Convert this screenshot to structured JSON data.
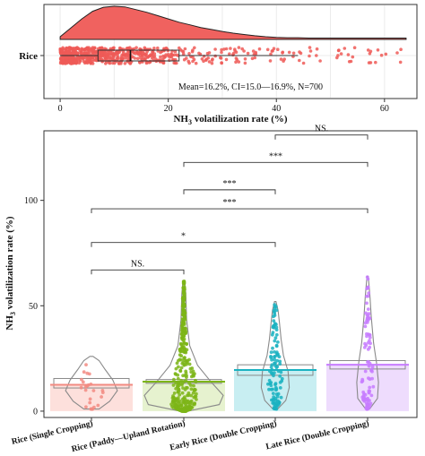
{
  "chart_data": [
    {
      "type": "raincloud",
      "category": "Rice",
      "xlabel": "NH3 volatilization rate (%)",
      "xlabel_parts": {
        "pre": "NH",
        "sub": "3",
        "post": " volatilization rate (%)"
      },
      "xlim": [
        -3,
        66
      ],
      "x_ticks": [
        0,
        20,
        40,
        60
      ],
      "x_tick_labels": [
        "0",
        "20",
        "40",
        "60"
      ],
      "annotation": "Mean=16.2%, CI=15.0—16.9%, N=700",
      "summary": {
        "mean": 16.2,
        "ci_low": 15.0,
        "ci_high": 16.9,
        "n": 700,
        "q1": 7,
        "median": 13,
        "q3": 22,
        "whisker_low": 0,
        "whisker_high": 44
      },
      "density": [
        [
          0,
          0.08
        ],
        [
          2,
          0.35
        ],
        [
          4,
          0.62
        ],
        [
          6,
          0.85
        ],
        [
          8,
          0.97
        ],
        [
          10,
          1.0
        ],
        [
          12,
          0.98
        ],
        [
          14,
          0.9
        ],
        [
          16,
          0.82
        ],
        [
          18,
          0.72
        ],
        [
          20,
          0.62
        ],
        [
          22,
          0.52
        ],
        [
          24,
          0.44
        ],
        [
          26,
          0.36
        ],
        [
          28,
          0.3
        ],
        [
          30,
          0.24
        ],
        [
          32,
          0.19
        ],
        [
          34,
          0.15
        ],
        [
          36,
          0.11
        ],
        [
          38,
          0.08
        ],
        [
          40,
          0.06
        ],
        [
          42,
          0.05
        ],
        [
          44,
          0.05
        ],
        [
          46,
          0.04
        ],
        [
          48,
          0.04
        ],
        [
          50,
          0.04
        ],
        [
          52,
          0.04
        ],
        [
          54,
          0.04
        ],
        [
          56,
          0.04
        ],
        [
          58,
          0.04
        ],
        [
          60,
          0.04
        ],
        [
          62,
          0.04
        ],
        [
          64,
          0.04
        ]
      ],
      "grid": true,
      "colors": {
        "fill": "#f0625f",
        "points": "#ef5b57",
        "box": "#333333"
      }
    },
    {
      "type": "violin",
      "categories": [
        "Rice (Single Cropping)",
        "Rice (Paddy—Upland Rotation)",
        "Early Rice (Double Cropping)",
        "Late Rice (Double Cropping)"
      ],
      "ylabel": "NH3 volatilization rate (%)",
      "ylabel_parts": {
        "pre": "NH",
        "sub": "3",
        "post": " volatilization rate (%)"
      },
      "ylim": [
        -3,
        133
      ],
      "y_ticks": [
        0,
        50,
        100
      ],
      "y_tick_labels": [
        "0",
        "50",
        "100"
      ],
      "grid": false,
      "series": [
        {
          "mean": 12.5,
          "ci": [
            11.0,
            15.5
          ],
          "min": 1,
          "max": 26,
          "color": "#f28b82",
          "fill": "#fde0dc",
          "n_points": 25
        },
        {
          "mean": 14.0,
          "ci": [
            13.2,
            15.0
          ],
          "min": 0,
          "max": 62,
          "color": "#7cb518",
          "fill": "#e6f2cf",
          "n_points": 360
        },
        {
          "mean": 19.5,
          "ci": [
            17.0,
            22.0
          ],
          "min": 1,
          "max": 52,
          "color": "#1ab2c1",
          "fill": "#c8eef2",
          "n_points": 110
        },
        {
          "mean": 22.0,
          "ci": [
            20.0,
            24.0
          ],
          "min": 1,
          "max": 64,
          "color": "#c77dff",
          "fill": "#eedcfd",
          "n_points": 95
        }
      ],
      "comparisons": [
        {
          "from": 0,
          "to": 1,
          "label": "NS.",
          "y": 67
        },
        {
          "from": 0,
          "to": 2,
          "label": "*",
          "y": 80
        },
        {
          "from": 0,
          "to": 3,
          "label": "***",
          "y": 96
        },
        {
          "from": 1,
          "to": 2,
          "label": "***",
          "y": 105
        },
        {
          "from": 1,
          "to": 3,
          "label": "***",
          "y": 118
        },
        {
          "from": 2,
          "to": 3,
          "label": "NS.",
          "y": 131
        }
      ]
    }
  ]
}
